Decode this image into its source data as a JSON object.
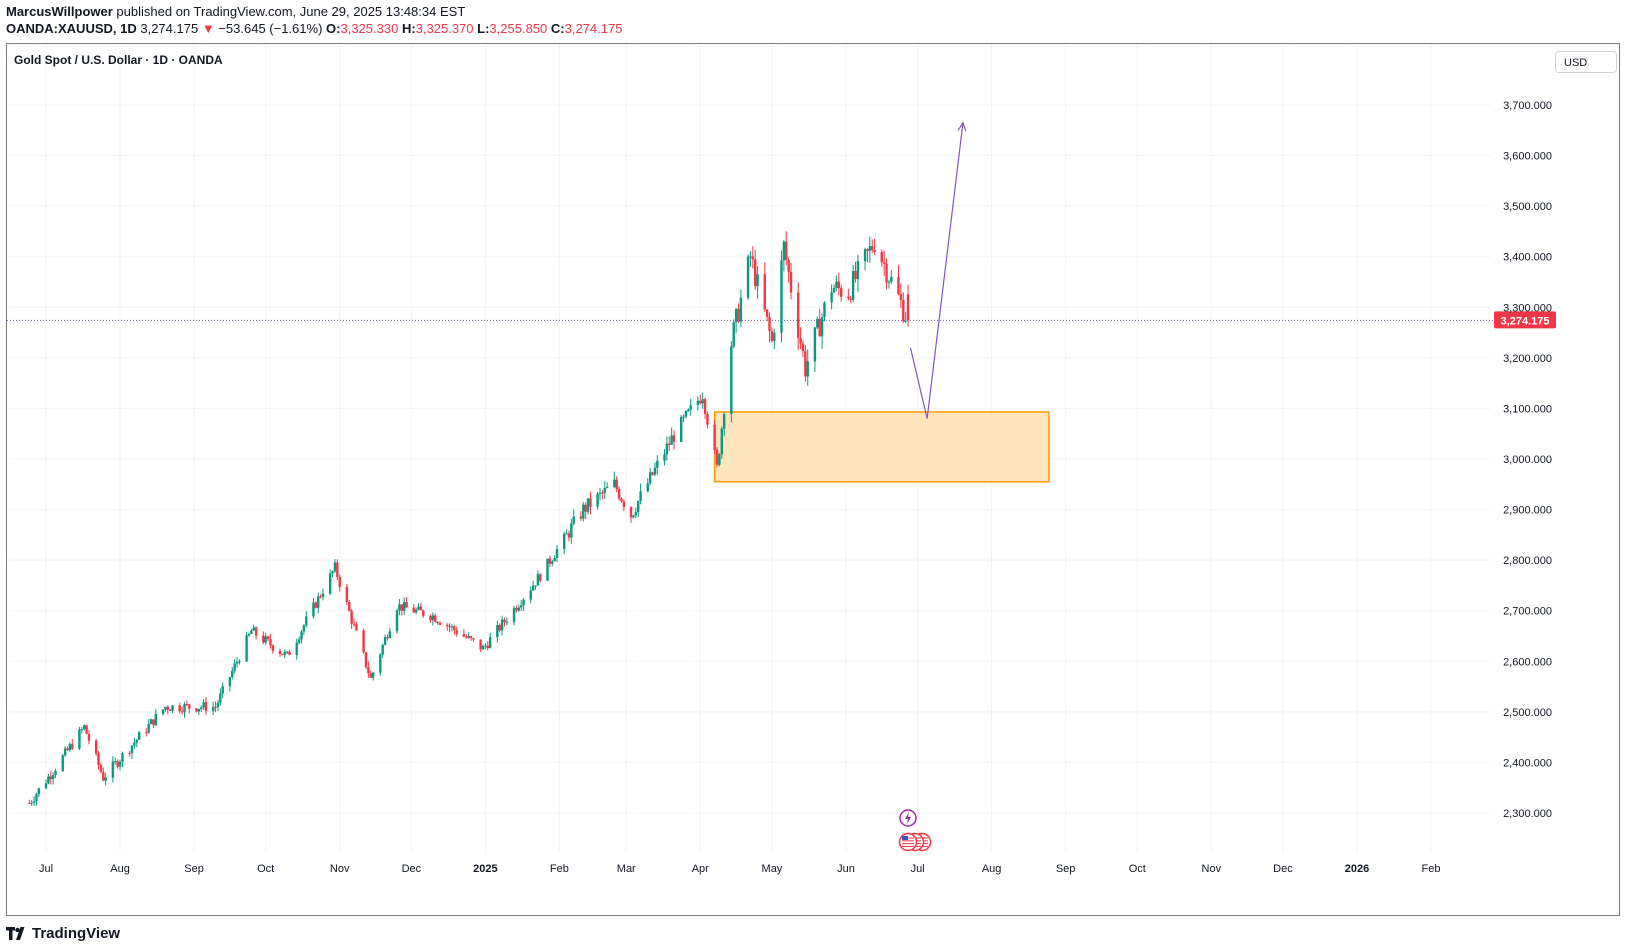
{
  "header": {
    "author": "MarcusWillpower",
    "published": "published on TradingView.com, June 29, 2025 13:48:34 EST",
    "symbol": "OANDA:XAUUSD, 1D",
    "last": "3,274.175",
    "arrow": "▼",
    "change": "−53.645 (−1.61%)",
    "o_label": "O:",
    "o_value": "3,325.330",
    "h_label": "H:",
    "h_value": "3,325.370",
    "l_label": "L:",
    "l_value": "3,255.850",
    "c_label": "C:",
    "c_value": "3,274.175"
  },
  "chart_title": "Gold Spot / U.S. Dollar · 1D · OANDA",
  "currency_button": "USD",
  "brand": {
    "name": "TradingView",
    "icon": "tradingview-logo-icon"
  },
  "colors": {
    "up": "#089981",
    "down": "#f23645",
    "price_line": "#7e57c2",
    "zone_fill": "#ffe0b2",
    "zone_border": "#ff9800",
    "arrow": "#7e57c2"
  },
  "chart_data": {
    "type": "candlestick",
    "title": "Gold Spot / U.S. Dollar · 1D · OANDA",
    "y_ticks": [
      2300,
      2400,
      2500,
      2600,
      2700,
      2800,
      2900,
      3000,
      3100,
      3200,
      3300,
      3400,
      3500,
      3600,
      3700
    ],
    "y_tick_labels": [
      "2,300.000",
      "2,400.000",
      "2,500.000",
      "2,600.000",
      "2,700.000",
      "2,800.000",
      "2,900.000",
      "3,000.000",
      "3,100.000",
      "3,200.000",
      "3,300.000",
      "3,400.000",
      "3,500.000",
      "3,600.000",
      "3,700.000"
    ],
    "ylim": [
      2225,
      3800
    ],
    "x_ticks": [
      "Jul",
      "Aug",
      "Sep",
      "Oct",
      "Nov",
      "Dec",
      "2025",
      "Feb",
      "Mar",
      "Apr",
      "May",
      "Jun",
      "Jul",
      "Aug",
      "Sep",
      "Oct",
      "Nov",
      "Dec",
      "2026",
      "Feb"
    ],
    "x_tick_dates": [
      "2024-07-01",
      "2024-08-01",
      "2024-09-01",
      "2024-10-01",
      "2024-11-01",
      "2024-12-01",
      "2025-01-01",
      "2025-02-01",
      "2025-03-01",
      "2025-04-01",
      "2025-05-01",
      "2025-06-01",
      "2025-07-01",
      "2025-08-01",
      "2025-09-01",
      "2025-10-01",
      "2025-11-01",
      "2025-12-01",
      "2026-01-01",
      "2026-02-01"
    ],
    "x_tick_bold": [
      false,
      false,
      false,
      false,
      false,
      false,
      true,
      false,
      false,
      false,
      false,
      false,
      false,
      false,
      false,
      false,
      false,
      false,
      true,
      false
    ],
    "last_price": 3274.175,
    "last_price_label": "3,274.175",
    "close_path": [
      [
        "2024-06-24",
        2320
      ],
      [
        "2024-07-05",
        2390
      ],
      [
        "2024-07-17",
        2470
      ],
      [
        "2024-07-25",
        2370
      ],
      [
        "2024-08-20",
        2510
      ],
      [
        "2024-09-10",
        2510
      ],
      [
        "2024-09-25",
        2660
      ],
      [
        "2024-10-10",
        2610
      ],
      [
        "2024-10-30",
        2785
      ],
      [
        "2024-11-14",
        2565
      ],
      [
        "2024-11-25",
        2710
      ],
      [
        "2024-12-10",
        2690
      ],
      [
        "2024-12-31",
        2625
      ],
      [
        "2025-01-24",
        2770
      ],
      [
        "2025-02-11",
        2900
      ],
      [
        "2025-02-24",
        2950
      ],
      [
        "2025-03-03",
        2890
      ],
      [
        "2025-03-20",
        3040
      ],
      [
        "2025-04-02",
        3130
      ],
      [
        "2025-04-08",
        2980
      ],
      [
        "2025-04-14",
        3230
      ],
      [
        "2025-04-22",
        3400
      ],
      [
        "2025-05-01",
        3230
      ],
      [
        "2025-05-06",
        3420
      ],
      [
        "2025-05-15",
        3180
      ],
      [
        "2025-05-26",
        3340
      ],
      [
        "2025-06-02",
        3330
      ],
      [
        "2025-06-13",
        3430
      ],
      [
        "2025-06-27",
        3274.175
      ]
    ],
    "annotations": {
      "zone": {
        "date_from": "2025-04-07",
        "date_to": "2025-08-25",
        "price_low": 2955,
        "price_high": 3093
      },
      "arrow_path": [
        [
          "2025-06-28",
          3220
        ],
        [
          "2025-07-05",
          3080
        ],
        [
          "2025-07-20",
          3665
        ]
      ],
      "event_icons": [
        "lightning-icon",
        "us-flag-icon"
      ]
    }
  }
}
